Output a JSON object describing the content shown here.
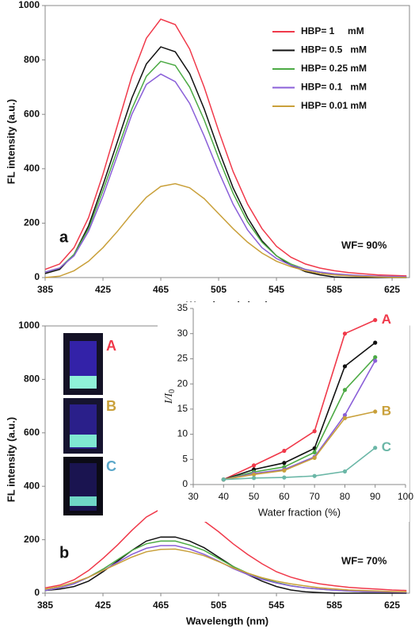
{
  "chart_data": [
    {
      "type": "line",
      "panel_label": "a",
      "annotation": "WF= 90%",
      "xlabel": "Wavelength (nm)",
      "ylabel": "FL intensity (a.u.)",
      "xlim": [
        385,
        637
      ],
      "ylim": [
        0,
        1000
      ],
      "xticks": [
        385,
        425,
        465,
        505,
        545,
        585,
        625
      ],
      "yticks": [
        0,
        200,
        400,
        600,
        800,
        1000
      ],
      "x": [
        385,
        395,
        405,
        415,
        425,
        435,
        445,
        455,
        465,
        475,
        485,
        495,
        505,
        515,
        525,
        535,
        545,
        555,
        565,
        575,
        585,
        595,
        605,
        615,
        625,
        635
      ],
      "legend": "upper right",
      "series": [
        {
          "name": "HBP= 1     mM",
          "color": "#f0394a",
          "values": [
            30,
            50,
            110,
            220,
            380,
            560,
            740,
            880,
            950,
            930,
            840,
            700,
            540,
            390,
            270,
            180,
            115,
            75,
            50,
            35,
            25,
            18,
            14,
            10,
            8,
            6
          ]
        },
        {
          "name": "HBP= 0.5   mM",
          "color": "#111111",
          "values": [
            15,
            30,
            85,
            190,
            340,
            500,
            660,
            785,
            848,
            830,
            750,
            620,
            470,
            330,
            220,
            135,
            80,
            45,
            22,
            10,
            2,
            0,
            0,
            0,
            0,
            0
          ]
        },
        {
          "name": "HBP= 0.25 mM",
          "color": "#4caa44",
          "values": [
            20,
            35,
            85,
            180,
            320,
            470,
            620,
            740,
            795,
            780,
            700,
            580,
            440,
            310,
            205,
            130,
            80,
            50,
            30,
            20,
            12,
            8,
            5,
            3,
            2,
            1
          ]
        },
        {
          "name": "HBP= 0.1   mM",
          "color": "#8a5fd8",
          "values": [
            20,
            35,
            80,
            170,
            300,
            450,
            600,
            710,
            748,
            720,
            640,
            520,
            390,
            270,
            175,
            110,
            70,
            45,
            30,
            20,
            14,
            10,
            7,
            5,
            4,
            3
          ]
        },
        {
          "name": "HBP= 0.01 mM",
          "color": "#c9a03a",
          "values": [
            0,
            5,
            25,
            60,
            110,
            170,
            235,
            295,
            335,
            345,
            330,
            290,
            235,
            180,
            130,
            90,
            60,
            40,
            25,
            15,
            10,
            6,
            4,
            2,
            1,
            1
          ]
        }
      ]
    },
    {
      "type": "line",
      "panel_label": "b",
      "annotation": "WF= 70%",
      "xlabel": "Wavelength (nm)",
      "ylabel": "FL intensity (a.u.)",
      "xlim": [
        385,
        637
      ],
      "ylim": [
        0,
        1000
      ],
      "xticks": [
        385,
        425,
        465,
        505,
        545,
        585,
        625
      ],
      "yticks": [
        0,
        200,
        400,
        600,
        800,
        1000
      ],
      "x": [
        385,
        395,
        405,
        415,
        425,
        435,
        445,
        455,
        465,
        475,
        485,
        495,
        505,
        515,
        525,
        535,
        545,
        555,
        565,
        575,
        585,
        595,
        605,
        615,
        625,
        635
      ],
      "vial_labels": [
        "A",
        "B",
        "C"
      ],
      "vial_label_colors": [
        "#f0394a",
        "#c9a03a",
        "#5aa7c9"
      ],
      "series": [
        {
          "color": "#f0394a",
          "values": [
            20,
            30,
            50,
            85,
            130,
            180,
            235,
            285,
            315,
            318,
            300,
            270,
            230,
            185,
            145,
            110,
            80,
            60,
            45,
            35,
            28,
            22,
            18,
            15,
            12,
            10
          ]
        },
        {
          "color": "#111111",
          "values": [
            10,
            15,
            25,
            45,
            80,
            120,
            160,
            195,
            210,
            210,
            195,
            170,
            135,
            100,
            70,
            45,
            25,
            12,
            5,
            2,
            0,
            0,
            0,
            0,
            0,
            0
          ]
        },
        {
          "color": "#4caa44",
          "values": [
            10,
            20,
            35,
            60,
            90,
            125,
            160,
            185,
            195,
            195,
            180,
            160,
            130,
            100,
            75,
            55,
            40,
            28,
            20,
            15,
            11,
            8,
            6,
            5,
            4,
            3
          ]
        },
        {
          "color": "#8a5fd8",
          "values": [
            10,
            20,
            35,
            60,
            85,
            115,
            145,
            168,
            178,
            178,
            165,
            145,
            120,
            92,
            70,
            52,
            38,
            27,
            20,
            15,
            11,
            8,
            6,
            5,
            4,
            3
          ]
        },
        {
          "color": "#c9a03a",
          "values": [
            15,
            25,
            40,
            60,
            85,
            110,
            135,
            155,
            164,
            165,
            155,
            140,
            118,
            95,
            75,
            58,
            45,
            35,
            27,
            20,
            16,
            12,
            10,
            8,
            6,
            5
          ]
        }
      ]
    },
    {
      "type": "line-markers",
      "xlabel": "Water fraction (%)",
      "ylabel": "I/I",
      "ylabel_subscript": "0",
      "xlim": [
        30,
        100
      ],
      "ylim": [
        0,
        35
      ],
      "xticks": [
        30,
        40,
        50,
        60,
        70,
        80,
        90,
        100
      ],
      "yticks": [
        0,
        5,
        10,
        15,
        20,
        25,
        30,
        35
      ],
      "x": [
        40,
        50,
        60,
        70,
        80,
        90
      ],
      "series": [
        {
          "name": "A",
          "color": "#f0394a",
          "values": [
            1,
            3.8,
            6.7,
            10.6,
            30,
            32.7
          ]
        },
        {
          "color": "#111111",
          "values": [
            1,
            3,
            4.3,
            7.2,
            23.5,
            28.2
          ]
        },
        {
          "color": "#4caa44",
          "values": [
            1,
            2.5,
            3.5,
            6.4,
            18.8,
            25.3
          ]
        },
        {
          "color": "#8a5fd8",
          "values": [
            1,
            2.2,
            3,
            5.5,
            13.8,
            24.6
          ]
        },
        {
          "name": "B",
          "color": "#c9a03a",
          "values": [
            1,
            2,
            2.8,
            5.3,
            13.2,
            14.5
          ]
        },
        {
          "name": "C",
          "color": "#6bb7a7",
          "values": [
            1,
            1.3,
            1.4,
            1.7,
            2.6,
            7.3
          ]
        }
      ]
    }
  ]
}
